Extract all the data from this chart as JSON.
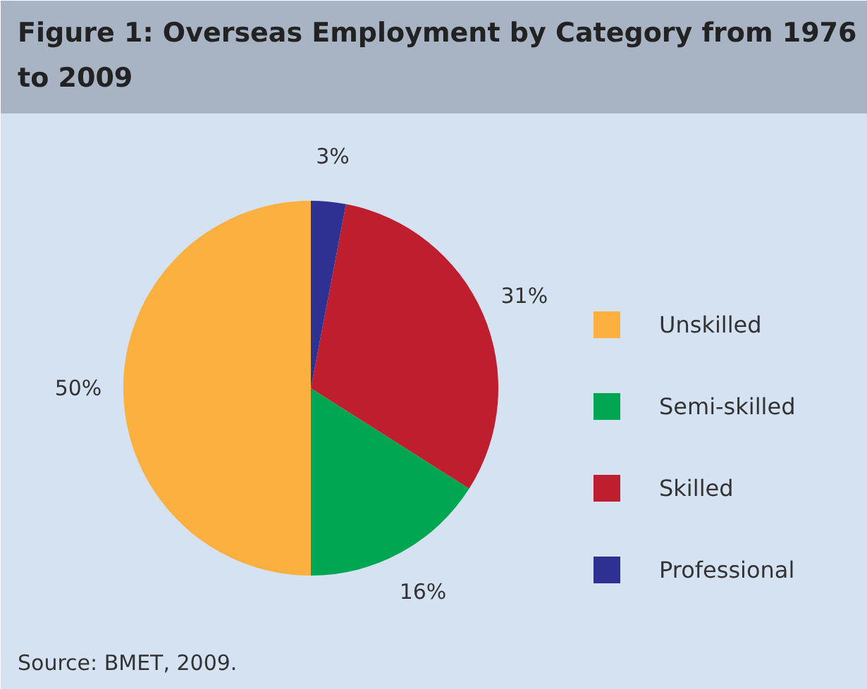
{
  "chart_data": {
    "type": "pie",
    "title": "Figure 1: Overseas Employment by Category from 1976 to 2009",
    "categories": [
      "Unskilled",
      "Semi-skilled",
      "Skilled",
      "Professional"
    ],
    "values": [
      50,
      16,
      31,
      3
    ],
    "colors": [
      "#fbb040",
      "#00a651",
      "#be1e2d",
      "#2e3192"
    ],
    "value_labels": [
      "50%",
      "16%",
      "31%",
      "3%"
    ],
    "legend": "right",
    "annotations": [
      "Source: BMET, 2009."
    ]
  }
}
